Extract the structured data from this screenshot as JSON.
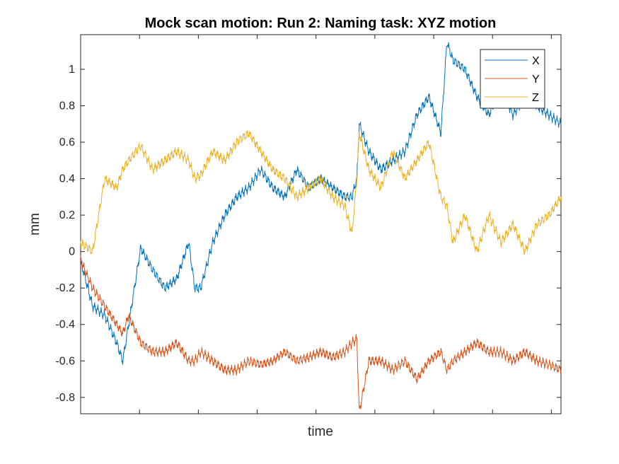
{
  "chart_data": {
    "type": "line",
    "title": "Mock scan motion: Run 2: Naming task: XYZ motion",
    "xlabel": "time",
    "ylabel": "mm",
    "xlim": [
      0,
      400
    ],
    "ylim": [
      -0.89,
      1.19
    ],
    "yticks": [
      -0.8,
      -0.6,
      -0.4,
      -0.2,
      0,
      0.2,
      0.4,
      0.6,
      0.8,
      1
    ],
    "ytick_labels": [
      "-0.8",
      "-0.6",
      "-0.4",
      "-0.2",
      "0",
      "0.2",
      "0.4",
      "0.6",
      "0.8",
      "1"
    ],
    "xticks": [
      49,
      98,
      147,
      196,
      245,
      294,
      343,
      392
    ],
    "grid": false,
    "legend_position": "top-right",
    "x": [
      0,
      10,
      20,
      30,
      35,
      40,
      50,
      60,
      70,
      80,
      90,
      95,
      100,
      110,
      120,
      130,
      140,
      150,
      160,
      170,
      180,
      190,
      200,
      210,
      220,
      226,
      230,
      232,
      240,
      250,
      260,
      270,
      280,
      290,
      300,
      305,
      310,
      320,
      330,
      340,
      350,
      360,
      370,
      380,
      390,
      400
    ],
    "series": [
      {
        "name": "X",
        "color": "#0072BD",
        "values": [
          -0.05,
          -0.3,
          -0.35,
          -0.5,
          -0.6,
          -0.4,
          0.02,
          -0.1,
          -0.2,
          -0.15,
          0.05,
          -0.2,
          -0.2,
          0.05,
          0.2,
          0.3,
          0.35,
          0.45,
          0.35,
          0.3,
          0.45,
          0.35,
          0.4,
          0.35,
          0.3,
          0.3,
          0.4,
          0.7,
          0.55,
          0.45,
          0.5,
          0.55,
          0.75,
          0.85,
          0.65,
          1.15,
          1.05,
          1.0,
          0.85,
          0.75,
          0.9,
          0.75,
          0.85,
          0.8,
          0.75,
          0.7
        ]
      },
      {
        "name": "Y",
        "color": "#D95319",
        "values": [
          -0.05,
          -0.2,
          -0.3,
          -0.4,
          -0.45,
          -0.35,
          -0.5,
          -0.55,
          -0.55,
          -0.5,
          -0.6,
          -0.6,
          -0.55,
          -0.6,
          -0.65,
          -0.65,
          -0.6,
          -0.62,
          -0.6,
          -0.55,
          -0.6,
          -0.58,
          -0.55,
          -0.58,
          -0.55,
          -0.5,
          -0.48,
          -0.88,
          -0.6,
          -0.6,
          -0.65,
          -0.6,
          -0.7,
          -0.6,
          -0.55,
          -0.65,
          -0.6,
          -0.55,
          -0.5,
          -0.55,
          -0.55,
          -0.6,
          -0.55,
          -0.6,
          -0.62,
          -0.65
        ]
      },
      {
        "name": "Z",
        "color": "#EDB120",
        "values": [
          0.05,
          0.0,
          0.4,
          0.35,
          0.45,
          0.5,
          0.58,
          0.45,
          0.5,
          0.55,
          0.5,
          0.4,
          0.42,
          0.55,
          0.5,
          0.6,
          0.65,
          0.55,
          0.45,
          0.4,
          0.3,
          0.35,
          0.4,
          0.3,
          0.25,
          0.1,
          0.4,
          0.65,
          0.45,
          0.35,
          0.55,
          0.4,
          0.5,
          0.6,
          0.3,
          0.25,
          0.05,
          0.2,
          0.0,
          0.2,
          0.05,
          0.15,
          0.0,
          0.15,
          0.2,
          0.3
        ]
      }
    ]
  }
}
